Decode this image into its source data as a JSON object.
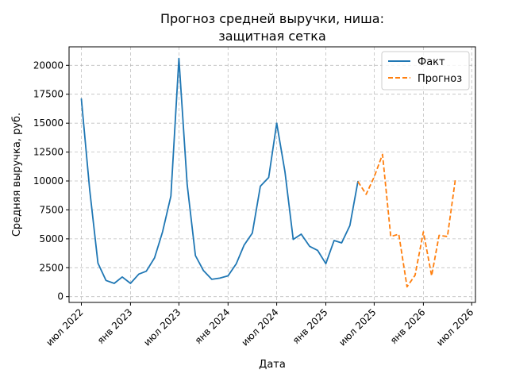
{
  "chart_data": {
    "type": "line",
    "title_line1": "Прогноз средней выручки, ниша:",
    "title_line2": "защитная сетка",
    "xlabel": "Дата",
    "ylabel": "Средняя выручка, руб.",
    "x_ticks": [
      {
        "date": "2022-07",
        "label": "июл 2022"
      },
      {
        "date": "2023-01",
        "label": "янв 2023"
      },
      {
        "date": "2023-07",
        "label": "июл 2023"
      },
      {
        "date": "2024-01",
        "label": "янв 2024"
      },
      {
        "date": "2024-07",
        "label": "июл 2024"
      },
      {
        "date": "2025-01",
        "label": "янв 2025"
      },
      {
        "date": "2025-07",
        "label": "июл 2025"
      },
      {
        "date": "2026-01",
        "label": "янв 2026"
      },
      {
        "date": "2026-07",
        "label": "июл 2026"
      }
    ],
    "y_ticks": [
      0,
      2500,
      5000,
      7500,
      10000,
      12500,
      15000,
      17500,
      20000
    ],
    "xlim": [
      "2022-05-16",
      "2026-07-15"
    ],
    "ylim": [
      -500,
      21600
    ],
    "grid": true,
    "legend_position": "top-right",
    "series": [
      {
        "name": "Факт",
        "color": "#1f77b4",
        "style": "solid",
        "points": [
          [
            "2022-07-01",
            17100
          ],
          [
            "2022-08-01",
            9300
          ],
          [
            "2022-09-01",
            2900
          ],
          [
            "2022-10-01",
            1400
          ],
          [
            "2022-11-01",
            1150
          ],
          [
            "2022-12-01",
            1700
          ],
          [
            "2023-01-01",
            1150
          ],
          [
            "2023-02-01",
            1950
          ],
          [
            "2023-03-01",
            2200
          ],
          [
            "2023-04-01",
            3350
          ],
          [
            "2023-05-01",
            5600
          ],
          [
            "2023-06-01",
            8700
          ],
          [
            "2023-07-01",
            20600
          ],
          [
            "2023-08-01",
            9700
          ],
          [
            "2023-09-01",
            3550
          ],
          [
            "2023-10-01",
            2250
          ],
          [
            "2023-11-01",
            1500
          ],
          [
            "2023-12-01",
            1600
          ],
          [
            "2024-01-01",
            1800
          ],
          [
            "2024-02-01",
            2850
          ],
          [
            "2024-03-01",
            4450
          ],
          [
            "2024-04-01",
            5500
          ],
          [
            "2024-05-01",
            9550
          ],
          [
            "2024-06-01",
            10300
          ],
          [
            "2024-07-01",
            15000
          ],
          [
            "2024-08-01",
            10800
          ],
          [
            "2024-09-01",
            4950
          ],
          [
            "2024-10-01",
            5400
          ],
          [
            "2024-11-01",
            4350
          ],
          [
            "2024-12-01",
            4000
          ],
          [
            "2025-01-01",
            2850
          ],
          [
            "2025-02-01",
            4850
          ],
          [
            "2025-03-01",
            4650
          ],
          [
            "2025-04-01",
            6150
          ],
          [
            "2025-05-01",
            9950
          ]
        ]
      },
      {
        "name": "Прогноз",
        "color": "#ff7f0e",
        "style": "dashed",
        "points": [
          [
            "2025-05-01",
            9950
          ],
          [
            "2025-06-01",
            8850
          ],
          [
            "2025-07-01",
            10350
          ],
          [
            "2025-08-01",
            12300
          ],
          [
            "2025-09-01",
            5200
          ],
          [
            "2025-10-01",
            5400
          ],
          [
            "2025-11-01",
            850
          ],
          [
            "2025-12-01",
            1850
          ],
          [
            "2026-01-01",
            5600
          ],
          [
            "2026-02-01",
            1800
          ],
          [
            "2026-03-01",
            5300
          ],
          [
            "2026-04-01",
            5200
          ],
          [
            "2026-05-01",
            10200
          ]
        ]
      }
    ]
  }
}
